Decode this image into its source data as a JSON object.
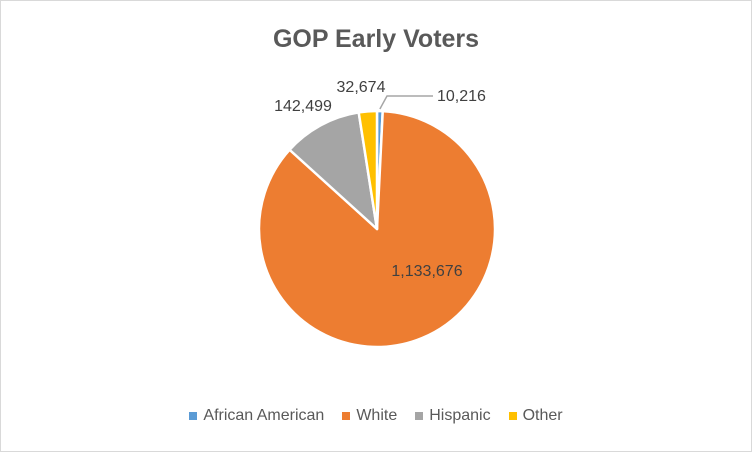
{
  "chart_data": {
    "type": "pie",
    "title": "GOP Early Voters",
    "categories": [
      "African American",
      "White",
      "Hispanic",
      "Other"
    ],
    "values": [
      10216,
      1133676,
      142499,
      32674
    ],
    "value_labels": [
      "10,216",
      "1,133,676",
      "142,499",
      "32,674"
    ],
    "colors": [
      "#5b9bd5",
      "#ed7d31",
      "#a5a5a5",
      "#ffc000"
    ],
    "legend_position": "bottom",
    "start_angle_deg": 0,
    "direction": "clockwise"
  },
  "label_style": {
    "text_color": "#404040",
    "leader_color": "#a6a6a6",
    "slice_border_color": "#ffffff"
  }
}
